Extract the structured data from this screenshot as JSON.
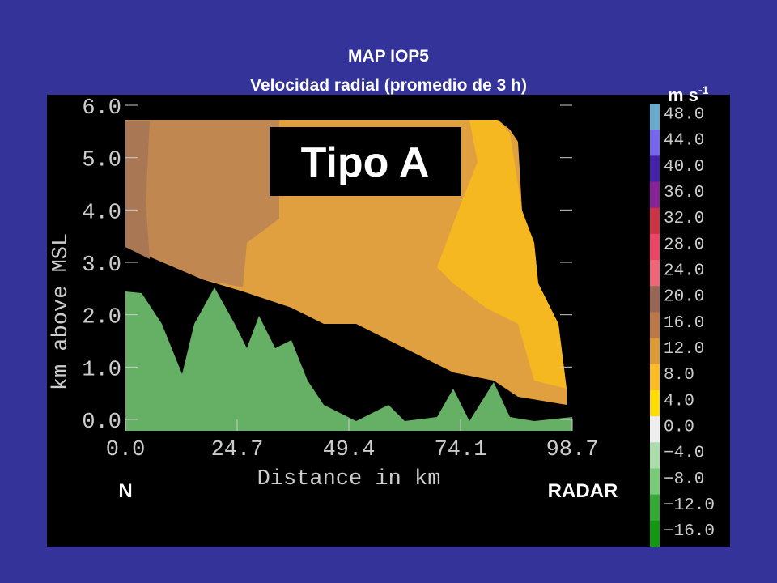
{
  "title": {
    "line1": "MAP IOP5",
    "line2": "Velocidad radial (promedio de 3 h)"
  },
  "plot": {
    "y_label": "km above MSL",
    "x_label": "Distance in km",
    "y_ticks": [
      "6.0",
      "5.0",
      "4.0",
      "3.0",
      "2.0",
      "1.0",
      "0.0"
    ],
    "x_ticks": [
      "0.0",
      "24.7",
      "49.4",
      "74.1",
      "98.7"
    ],
    "annotation": "Tipo A",
    "left_label": "N",
    "right_label": "RADAR"
  },
  "colorbar": {
    "unit": "m s",
    "unit_exp": "-1",
    "labels": [
      "48.0",
      "44.0",
      "40.0",
      "36.0",
      "32.0",
      "28.0",
      "24.0",
      "20.0",
      "16.0",
      "12.0",
      "8.0",
      "4.0",
      "0.0",
      "−4.0",
      "−8.0",
      "−12.0",
      "−16.0"
    ],
    "colors": [
      "#66aacc",
      "#7766ee",
      "#4422aa",
      "#882299",
      "#cc3344",
      "#ee4466",
      "#ee6677",
      "#996655",
      "#bb7744",
      "#dd9933",
      "#ffbb22",
      "#ffdd00",
      "#eeeeee",
      "#aaddaa",
      "#77cc77",
      "#33aa33",
      "#119911"
    ]
  }
}
